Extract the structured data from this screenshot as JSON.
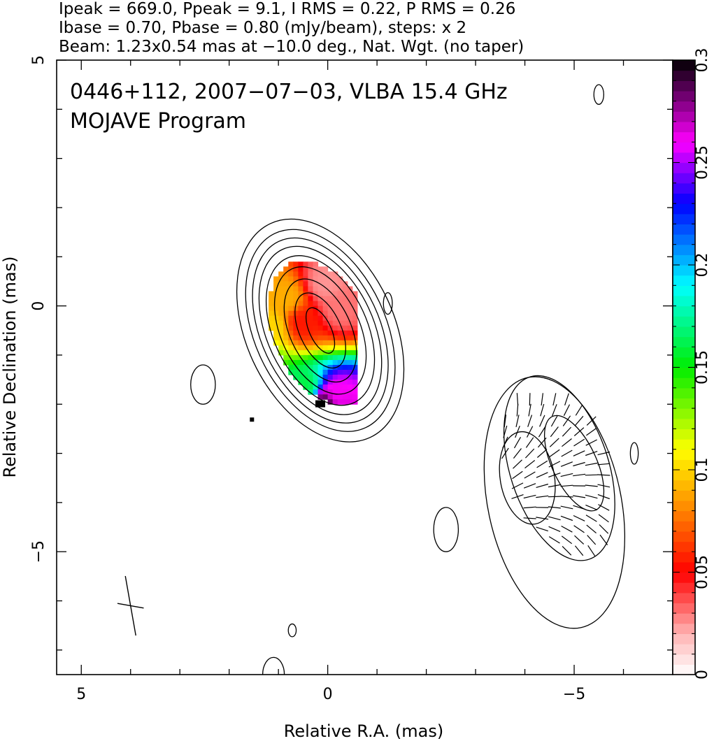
{
  "header": {
    "line1": "Ipeak = 669.0, Ppeak = 9.1, I RMS = 0.22, P RMS = 0.26",
    "line2": "Ibase = 0.70, Pbase = 0.80 (mJy/beam), steps: x 2",
    "line3": "Beam: 1.23x0.54 mas at −10.0 deg., Nat. Wgt. (no taper)"
  },
  "chart_data": {
    "type": "heatmap",
    "title": "0446+112, 2007−07−03, VLBA 15.4 GHz",
    "subtitle": "MOJAVE Program",
    "xlabel": "Relative R.A. (mas)",
    "ylabel": "Relative Declination (mas)",
    "xlim": [
      5.5,
      -7.0
    ],
    "ylim": [
      -7.5,
      5.0
    ],
    "x_ticks": [
      {
        "value": 5,
        "label": "5"
      },
      {
        "value": 0,
        "label": "0"
      },
      {
        "value": -5,
        "label": "−5"
      }
    ],
    "y_ticks": [
      {
        "value": 5,
        "label": "5"
      },
      {
        "value": 0,
        "label": "0"
      },
      {
        "value": -5,
        "label": "−5"
      }
    ],
    "colorbar": {
      "range": [
        0,
        0.3
      ],
      "ticks": [
        {
          "value": 0,
          "label": "0"
        },
        {
          "value": 0.05,
          "label": "0.05"
        },
        {
          "value": 0.1,
          "label": "0.1"
        },
        {
          "value": 0.15,
          "label": "0.15"
        },
        {
          "value": 0.2,
          "label": "0.2"
        },
        {
          "value": 0.25,
          "label": "0.25"
        },
        {
          "value": 0.3,
          "label": "0.3"
        }
      ],
      "stops": [
        {
          "v": 0.0,
          "color": "#ffffff"
        },
        {
          "v": 0.02,
          "color": "#ffb3b3"
        },
        {
          "v": 0.05,
          "color": "#ff0000"
        },
        {
          "v": 0.085,
          "color": "#ff9900"
        },
        {
          "v": 0.11,
          "color": "#ffff00"
        },
        {
          "v": 0.15,
          "color": "#00ee00"
        },
        {
          "v": 0.19,
          "color": "#00ffff"
        },
        {
          "v": 0.23,
          "color": "#0000ff"
        },
        {
          "v": 0.26,
          "color": "#ff00ff"
        },
        {
          "v": 0.3,
          "color": "#000000"
        }
      ]
    },
    "core": {
      "center": [
        0.15,
        -0.5
      ],
      "angle_deg": 25,
      "contour_semi_axes": [
        [
          0.22,
          0.5
        ],
        [
          0.42,
          0.82
        ],
        [
          0.62,
          1.12
        ],
        [
          0.8,
          1.38
        ],
        [
          0.95,
          1.62
        ],
        [
          1.08,
          1.82
        ],
        [
          1.2,
          2.0
        ],
        [
          1.33,
          2.18
        ],
        [
          1.5,
          2.4
        ]
      ],
      "fraction_samples": [
        {
          "x": 0.1,
          "y": 0.5,
          "v": 0.025
        },
        {
          "x": -0.2,
          "y": 0.0,
          "v": 0.03
        },
        {
          "x": 0.6,
          "y": -0.3,
          "v": 0.055
        },
        {
          "x": 0.9,
          "y": 0.2,
          "v": 0.09
        },
        {
          "x": 1.15,
          "y": -0.4,
          "v": 0.1
        },
        {
          "x": 1.3,
          "y": -1.0,
          "v": 0.13
        },
        {
          "x": 1.1,
          "y": -1.6,
          "v": 0.175
        },
        {
          "x": 0.5,
          "y": -1.6,
          "v": 0.16
        },
        {
          "x": -0.1,
          "y": -1.8,
          "v": 0.26
        },
        {
          "x": 0.1,
          "y": -1.95,
          "v": 0.3
        }
      ]
    },
    "jet_component": {
      "center": [
        -4.8,
        -3.4
      ],
      "contours": [
        {
          "cx": -4.6,
          "cy": -4.0,
          "rx": 1.35,
          "ry": 2.6,
          "angle_deg": 12
        },
        {
          "cx": -4.7,
          "cy": -3.3,
          "rx": 1.0,
          "ry": 1.95,
          "angle_deg": 18
        }
      ],
      "lobes": [
        {
          "cx": -4.05,
          "cy": -3.5,
          "rx": 0.55,
          "ry": 0.95,
          "angle_deg": 10
        },
        {
          "cx": -5.0,
          "cy": -3.2,
          "rx": 0.45,
          "ry": 1.05,
          "angle_deg": 25
        }
      ]
    },
    "isolated_contours": [
      {
        "cx": 2.53,
        "cy": -1.6,
        "rx": 0.25,
        "ry": 0.4
      },
      {
        "cx": -1.22,
        "cy": 0.05,
        "rx": 0.09,
        "ry": 0.22
      },
      {
        "cx": -2.4,
        "cy": -4.55,
        "rx": 0.25,
        "ry": 0.45
      },
      {
        "cx": -6.22,
        "cy": -3.0,
        "rx": 0.08,
        "ry": 0.22
      },
      {
        "cx": -5.5,
        "cy": 4.3,
        "rx": 0.1,
        "ry": 0.2
      },
      {
        "cx": 0.72,
        "cy": -6.6,
        "rx": 0.08,
        "ry": 0.13
      },
      {
        "cx": 1.1,
        "cy": -7.5,
        "rx": 0.22,
        "ry": 0.35
      }
    ],
    "beam": {
      "center": [
        4.0,
        -6.1
      ],
      "major": 1.23,
      "minor": 0.54,
      "pa_deg": -10.0
    }
  }
}
